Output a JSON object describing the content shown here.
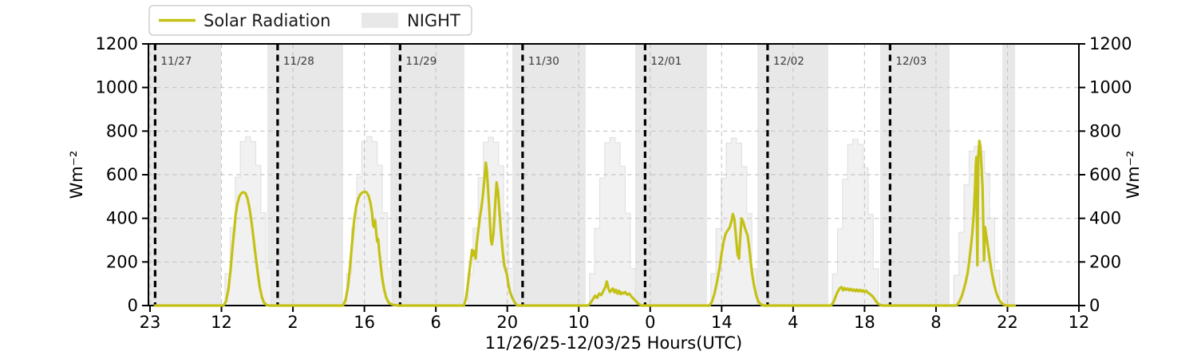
{
  "chart": {
    "legend": {
      "solar_label": "Solar Radiation",
      "night_label": "NIGHT"
    },
    "axis": {
      "xlabel": "11/26/25-12/03/25  Hours(UTC)",
      "ylabel_left": "Wm⁻²",
      "ylabel_right": "Wm⁻²"
    }
  },
  "chart_data": {
    "type": "line",
    "title": "",
    "xlabel": "11/26/25-12/03/25  Hours(UTC)",
    "ylabel": "Wm⁻²",
    "x_units": "hours since 11/26/25 23:00 UTC",
    "ylim": [
      0,
      1200
    ],
    "grid": true,
    "legend_position": "top-left",
    "yticks": [
      0,
      200,
      400,
      600,
      800,
      1000,
      1200
    ],
    "xticks": {
      "hours": [
        0,
        14,
        28,
        42,
        56,
        70,
        84,
        98,
        112,
        126,
        140,
        154,
        168,
        182
      ],
      "labels": [
        "23",
        "12",
        "2",
        "16",
        "6",
        "20",
        "10",
        "0",
        "14",
        "4",
        "18",
        "8",
        "22",
        "12"
      ]
    },
    "day_markers": [
      {
        "h": 1,
        "label": "11/27"
      },
      {
        "h": 25,
        "label": "11/28"
      },
      {
        "h": 49,
        "label": "11/29"
      },
      {
        "h": 73,
        "label": "11/30"
      },
      {
        "h": 97,
        "label": "12/01"
      },
      {
        "h": 121,
        "label": "12/02"
      },
      {
        "h": 145,
        "label": "12/03"
      }
    ],
    "night_bands_h": [
      [
        -0.35,
        13.92
      ],
      [
        22.98,
        37.84
      ],
      [
        47.06,
        61.6
      ],
      [
        70.98,
        85.37
      ],
      [
        95.06,
        109.13
      ],
      [
        118.98,
        132.9
      ],
      [
        143.06,
        156.66
      ],
      [
        166.99,
        169.49
      ]
    ],
    "clear_sky_steps": [
      {
        "start_h": 14.7,
        "hourly_values": [
          147,
          357,
          589,
          752,
          775,
          752,
          643,
          426,
          171
        ]
      },
      {
        "start_h": 38.5,
        "hourly_values": [
          147,
          357,
          589,
          752,
          775,
          752,
          643,
          426,
          171
        ]
      },
      {
        "start_h": 62.3,
        "hourly_values": [
          146,
          355,
          587,
          749,
          772,
          749,
          641,
          424,
          170
        ]
      },
      {
        "start_h": 86.1,
        "hourly_values": [
          146,
          354,
          585,
          747,
          770,
          747,
          639,
          423,
          170
        ]
      },
      {
        "start_h": 109.9,
        "hourly_values": [
          146,
          353,
          584,
          745,
          768,
          745,
          637,
          422,
          169
        ]
      },
      {
        "start_h": 133.7,
        "hourly_values": [
          145,
          351,
          579,
          739,
          762,
          739,
          632,
          418,
          168
        ]
      },
      {
        "start_h": 157.5,
        "hourly_values": [
          139,
          336,
          555,
          708,
          730,
          708,
          606,
          402,
          161
        ]
      }
    ],
    "series": [
      {
        "name": "Solar Radiation",
        "points_h_v": [
          [
            1.0,
            0
          ],
          [
            13.9,
            0
          ],
          [
            14.4,
            0
          ],
          [
            14.9,
            20
          ],
          [
            15.4,
            80
          ],
          [
            15.8,
            170
          ],
          [
            16.2,
            275
          ],
          [
            16.5,
            345
          ],
          [
            16.8,
            420
          ],
          [
            17.1,
            465
          ],
          [
            17.5,
            500
          ],
          [
            17.9,
            515
          ],
          [
            18.3,
            520
          ],
          [
            18.7,
            515
          ],
          [
            19.1,
            490
          ],
          [
            19.5,
            445
          ],
          [
            19.9,
            380
          ],
          [
            20.3,
            305
          ],
          [
            20.7,
            225
          ],
          [
            21.1,
            150
          ],
          [
            21.5,
            85
          ],
          [
            21.9,
            40
          ],
          [
            22.3,
            15
          ],
          [
            22.8,
            3
          ],
          [
            23.3,
            0
          ],
          [
            37.4,
            0
          ],
          [
            37.8,
            0
          ],
          [
            38.3,
            25
          ],
          [
            38.8,
            90
          ],
          [
            39.2,
            180
          ],
          [
            39.6,
            290
          ],
          [
            40.0,
            390
          ],
          [
            40.4,
            455
          ],
          [
            40.8,
            490
          ],
          [
            41.2,
            510
          ],
          [
            41.6,
            518
          ],
          [
            42.0,
            522
          ],
          [
            42.4,
            520
          ],
          [
            42.8,
            505
          ],
          [
            43.2,
            470
          ],
          [
            43.5,
            425
          ],
          [
            43.7,
            370
          ],
          [
            43.9,
            360
          ],
          [
            44.1,
            390
          ],
          [
            44.3,
            340
          ],
          [
            44.5,
            295
          ],
          [
            44.7,
            305
          ],
          [
            44.9,
            250
          ],
          [
            45.2,
            185
          ],
          [
            45.5,
            125
          ],
          [
            45.9,
            70
          ],
          [
            46.3,
            35
          ],
          [
            46.8,
            12
          ],
          [
            47.5,
            4
          ],
          [
            48.6,
            0
          ],
          [
            61.2,
            0
          ],
          [
            61.5,
            0
          ],
          [
            61.9,
            30
          ],
          [
            62.2,
            80
          ],
          [
            62.5,
            140
          ],
          [
            62.8,
            200
          ],
          [
            63.1,
            255
          ],
          [
            63.3,
            230
          ],
          [
            63.5,
            250
          ],
          [
            63.8,
            215
          ],
          [
            64.0,
            280
          ],
          [
            64.3,
            340
          ],
          [
            64.6,
            400
          ],
          [
            64.9,
            445
          ],
          [
            65.2,
            500
          ],
          [
            65.5,
            575
          ],
          [
            65.8,
            655
          ],
          [
            66.0,
            620
          ],
          [
            66.2,
            545
          ],
          [
            66.5,
            430
          ],
          [
            66.8,
            300
          ],
          [
            67.0,
            280
          ],
          [
            67.3,
            330
          ],
          [
            67.6,
            455
          ],
          [
            67.9,
            565
          ],
          [
            68.2,
            520
          ],
          [
            68.5,
            420
          ],
          [
            68.8,
            330
          ],
          [
            69.1,
            250
          ],
          [
            69.4,
            185
          ],
          [
            69.7,
            160
          ],
          [
            69.9,
            145
          ],
          [
            70.2,
            100
          ],
          [
            70.5,
            65
          ],
          [
            70.9,
            40
          ],
          [
            71.3,
            20
          ],
          [
            71.9,
            0
          ],
          [
            85.4,
            0
          ],
          [
            85.8,
            0
          ],
          [
            86.3,
            12
          ],
          [
            86.8,
            30
          ],
          [
            87.2,
            45
          ],
          [
            87.6,
            35
          ],
          [
            88.0,
            55
          ],
          [
            88.4,
            48
          ],
          [
            88.8,
            65
          ],
          [
            89.2,
            85
          ],
          [
            89.5,
            110
          ],
          [
            89.8,
            80
          ],
          [
            90.1,
            62
          ],
          [
            90.4,
            70
          ],
          [
            90.7,
            78
          ],
          [
            91.0,
            60
          ],
          [
            91.3,
            72
          ],
          [
            91.6,
            55
          ],
          [
            91.9,
            68
          ],
          [
            92.2,
            52
          ],
          [
            92.5,
            60
          ],
          [
            92.8,
            55
          ],
          [
            93.1,
            62
          ],
          [
            93.5,
            50
          ],
          [
            93.9,
            55
          ],
          [
            94.3,
            42
          ],
          [
            94.7,
            32
          ],
          [
            95.2,
            20
          ],
          [
            95.7,
            8
          ],
          [
            96.3,
            0
          ],
          [
            109.3,
            0
          ],
          [
            109.6,
            0
          ],
          [
            110.1,
            18
          ],
          [
            110.6,
            55
          ],
          [
            111.1,
            110
          ],
          [
            111.6,
            175
          ],
          [
            112.0,
            240
          ],
          [
            112.4,
            295
          ],
          [
            112.8,
            330
          ],
          [
            113.2,
            345
          ],
          [
            113.6,
            360
          ],
          [
            113.9,
            385
          ],
          [
            114.2,
            420
          ],
          [
            114.5,
            395
          ],
          [
            114.8,
            320
          ],
          [
            115.1,
            235
          ],
          [
            115.4,
            215
          ],
          [
            115.6,
            300
          ],
          [
            115.9,
            400
          ],
          [
            116.2,
            385
          ],
          [
            116.5,
            360
          ],
          [
            116.8,
            340
          ],
          [
            117.1,
            320
          ],
          [
            117.4,
            265
          ],
          [
            117.7,
            200
          ],
          [
            118.0,
            140
          ],
          [
            118.4,
            85
          ],
          [
            118.8,
            45
          ],
          [
            119.2,
            18
          ],
          [
            119.7,
            5
          ],
          [
            120.2,
            0
          ],
          [
            133.1,
            0
          ],
          [
            133.4,
            0
          ],
          [
            133.9,
            15
          ],
          [
            134.3,
            40
          ],
          [
            134.7,
            62
          ],
          [
            135.1,
            78
          ],
          [
            135.5,
            85
          ],
          [
            135.8,
            70
          ],
          [
            136.1,
            80
          ],
          [
            136.4,
            72
          ],
          [
            136.7,
            78
          ],
          [
            137.0,
            70
          ],
          [
            137.3,
            76
          ],
          [
            137.6,
            68
          ],
          [
            137.9,
            74
          ],
          [
            138.2,
            66
          ],
          [
            138.5,
            73
          ],
          [
            138.8,
            65
          ],
          [
            139.1,
            72
          ],
          [
            139.4,
            64
          ],
          [
            139.7,
            70
          ],
          [
            140.0,
            62
          ],
          [
            140.3,
            68
          ],
          [
            140.7,
            58
          ],
          [
            141.1,
            52
          ],
          [
            141.5,
            44
          ],
          [
            141.9,
            32
          ],
          [
            142.3,
            18
          ],
          [
            142.8,
            6
          ],
          [
            143.4,
            0
          ],
          [
            157.7,
            0
          ],
          [
            158.0,
            0
          ],
          [
            158.5,
            15
          ],
          [
            159.0,
            40
          ],
          [
            159.4,
            70
          ],
          [
            159.8,
            105
          ],
          [
            160.2,
            150
          ],
          [
            160.5,
            200
          ],
          [
            160.8,
            260
          ],
          [
            161.1,
            330
          ],
          [
            161.4,
            420
          ],
          [
            161.6,
            520
          ],
          [
            161.8,
            640
          ],
          [
            161.9,
            680
          ],
          [
            162.0,
            430
          ],
          [
            162.1,
            185
          ],
          [
            162.2,
            480
          ],
          [
            162.3,
            690
          ],
          [
            162.5,
            755
          ],
          [
            162.7,
            730
          ],
          [
            162.9,
            640
          ],
          [
            163.1,
            545
          ],
          [
            163.2,
            450
          ],
          [
            163.4,
            205
          ],
          [
            163.6,
            360
          ],
          [
            163.8,
            330
          ],
          [
            164.0,
            300
          ],
          [
            164.2,
            265
          ],
          [
            164.5,
            215
          ],
          [
            164.8,
            170
          ],
          [
            165.1,
            130
          ],
          [
            165.4,
            95
          ],
          [
            165.8,
            60
          ],
          [
            166.2,
            35
          ],
          [
            166.6,
            18
          ],
          [
            167.1,
            6
          ],
          [
            167.8,
            0
          ],
          [
            169.4,
            0
          ]
        ]
      }
    ],
    "colors": {
      "solar": "#c4c116",
      "night_band": "#e8e8e8",
      "clear_sky_fill": "#f1f1f1",
      "clear_sky_edge": "#e2e2e2",
      "grid": "#c6c6c6",
      "day_marker": "#000000",
      "legend_border": "#cfcfcf"
    }
  }
}
